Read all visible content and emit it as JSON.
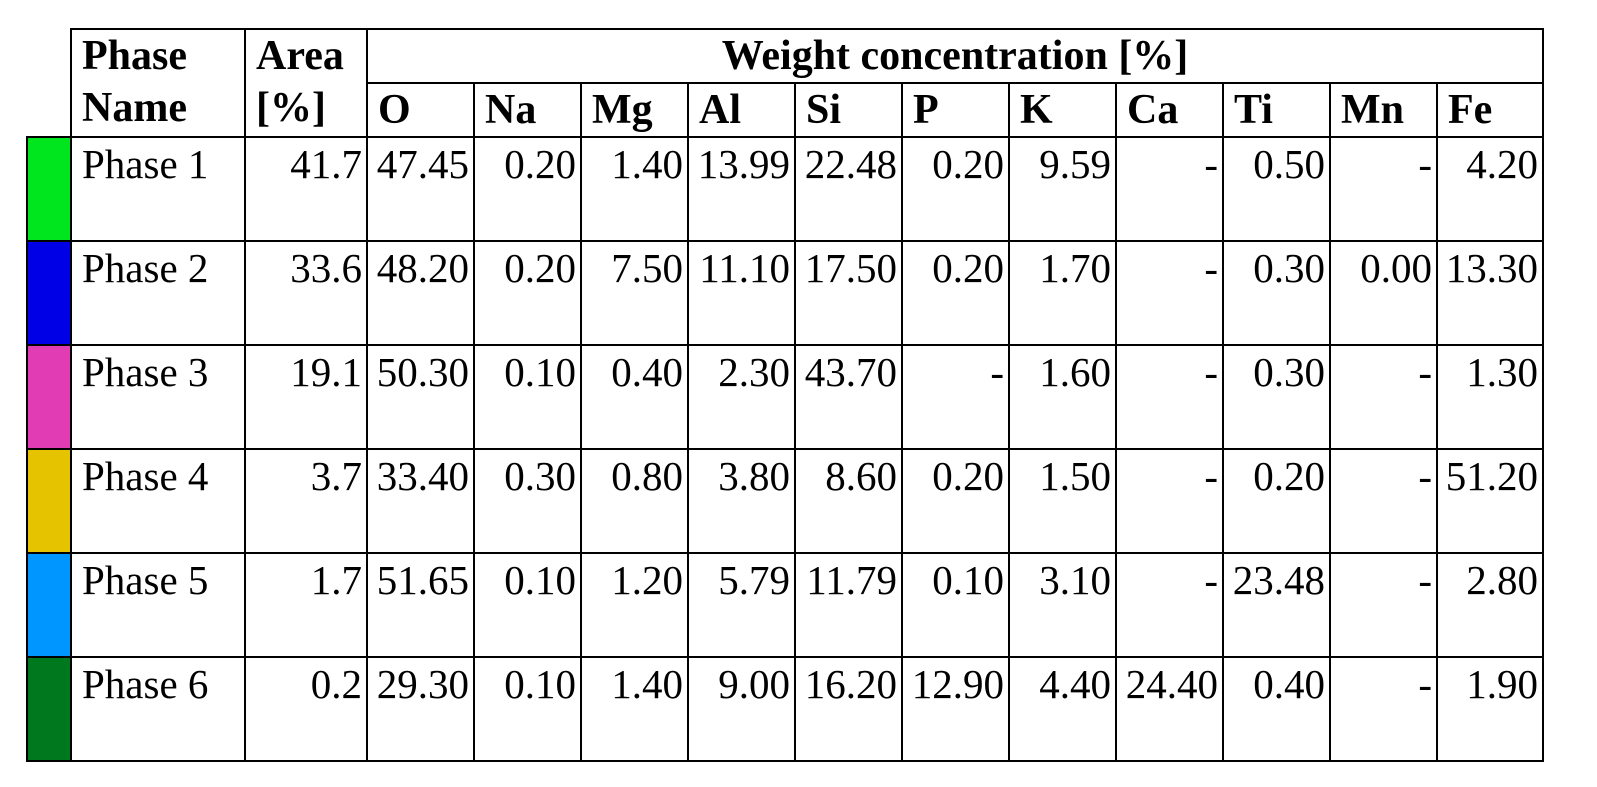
{
  "table": {
    "headers": {
      "phase_name": "Phase Name",
      "area": "Area [%]",
      "weight_group": "Weight concentration [%]",
      "elements": [
        "O",
        "Na",
        "Mg",
        "Al",
        "Si",
        "P",
        "K",
        "Ca",
        "Ti",
        "Mn",
        "Fe"
      ]
    },
    "rows": [
      {
        "name": "Phase 1",
        "color": "#00e61e",
        "area": "41.7",
        "values": [
          "47.45",
          "0.20",
          "1.40",
          "13.99",
          "22.48",
          "0.20",
          "9.59",
          "-",
          "0.50",
          "-",
          "4.20"
        ]
      },
      {
        "name": "Phase 2",
        "color": "#0000e6",
        "area": "33.6",
        "values": [
          "48.20",
          "0.20",
          "7.50",
          "11.10",
          "17.50",
          "0.20",
          "1.70",
          "-",
          "0.30",
          "0.00",
          "13.30"
        ]
      },
      {
        "name": "Phase 3",
        "color": "#e23cb4",
        "area": "19.1",
        "values": [
          "50.30",
          "0.10",
          "0.40",
          "2.30",
          "43.70",
          "-",
          "1.60",
          "-",
          "0.30",
          "-",
          "1.30"
        ]
      },
      {
        "name": "Phase 4",
        "color": "#e6c300",
        "area": "3.7",
        "values": [
          "33.40",
          "0.30",
          "0.80",
          "3.80",
          "8.60",
          "0.20",
          "1.50",
          "-",
          "0.20",
          "-",
          "51.20"
        ]
      },
      {
        "name": "Phase 5",
        "color": "#0096ff",
        "area": "1.7",
        "values": [
          "51.65",
          "0.10",
          "1.20",
          "5.79",
          "11.79",
          "0.10",
          "3.10",
          "-",
          "23.48",
          "-",
          "2.80"
        ]
      },
      {
        "name": "Phase 6",
        "color": "#00781e",
        "area": "0.2",
        "values": [
          "29.30",
          "0.10",
          "1.40",
          "9.00",
          "16.20",
          "12.90",
          "4.40",
          "24.40",
          "0.40",
          "-",
          "1.90"
        ]
      }
    ]
  }
}
